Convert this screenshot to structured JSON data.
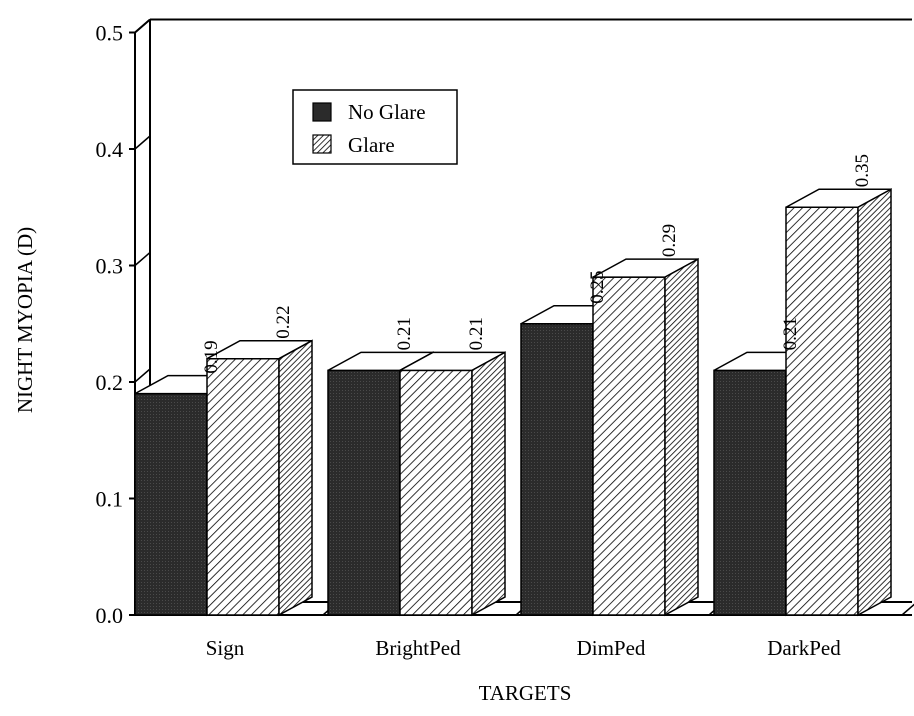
{
  "chart_data": {
    "type": "bar",
    "categories": [
      "Sign",
      "BrightPed",
      "DimPed",
      "DarkPed"
    ],
    "series": [
      {
        "name": "No Glare",
        "values": [
          0.19,
          0.21,
          0.25,
          0.21
        ],
        "data_labels": [
          "0.19",
          "0.21",
          "0.25",
          "0.21"
        ],
        "fill": "dark"
      },
      {
        "name": "Glare",
        "values": [
          0.22,
          0.21,
          0.29,
          0.35
        ],
        "data_labels": [
          "0.22",
          "0.21",
          "0.29",
          "0.35"
        ],
        "fill": "hatched"
      }
    ],
    "xlabel": "TARGETS",
    "ylabel": "NIGHT MYOPIA (D)",
    "ylim": [
      0,
      0.5
    ],
    "yticks": [
      "0.0",
      "0.1",
      "0.2",
      "0.3",
      "0.4",
      "0.5"
    ],
    "grid": false,
    "legend_position": "top-left",
    "style": "3d-bars"
  },
  "colors": {
    "dark_bar": "#2b2b2b",
    "hatch_bg": "#ffffff",
    "hatch_line": "#000000",
    "axis": "#000000"
  }
}
